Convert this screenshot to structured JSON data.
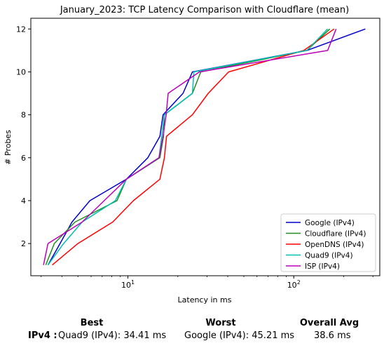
{
  "chart_data": {
    "type": "line",
    "title": "January_2023: TCP Latency Comparison with Cloudflare (mean)",
    "xlabel": "Latency in ms",
    "ylabel": "# Probes",
    "xscale": "log",
    "xlim": [
      2.6,
      330
    ],
    "ylim": [
      0.5,
      12.5
    ],
    "xticks": [
      {
        "value": 10,
        "base": "10",
        "exp": "1"
      },
      {
        "value": 100,
        "base": "10",
        "exp": "2"
      }
    ],
    "yticks": [
      2,
      4,
      6,
      8,
      10,
      12
    ],
    "grid": false,
    "legend_position": "lower-right",
    "series": [
      {
        "name": "Google (IPv4)",
        "color": "#0000cc",
        "points": [
          [
            3.3,
            1
          ],
          [
            3.9,
            2
          ],
          [
            4.6,
            3
          ],
          [
            5.9,
            4
          ],
          [
            9.8,
            5
          ],
          [
            13.2,
            6
          ],
          [
            15.6,
            7
          ],
          [
            16.3,
            8
          ],
          [
            21.5,
            9
          ],
          [
            24.5,
            10
          ],
          [
            120,
            11
          ],
          [
            270,
            12
          ]
        ]
      },
      {
        "name": "Cloudflare (IPv4)",
        "color": "#228b22",
        "points": [
          [
            3.2,
            1
          ],
          [
            3.6,
            2
          ],
          [
            4.8,
            3
          ],
          [
            8.6,
            4
          ],
          [
            9.8,
            5
          ],
          [
            15.6,
            6
          ],
          [
            16.4,
            7
          ],
          [
            16.6,
            8
          ],
          [
            24.5,
            9
          ],
          [
            27.5,
            10
          ],
          [
            120,
            11
          ],
          [
            165,
            12
          ]
        ]
      },
      {
        "name": "OpenDNS (IPv4)",
        "color": "#ff0000",
        "points": [
          [
            3.5,
            1
          ],
          [
            5.0,
            2
          ],
          [
            8.1,
            3
          ],
          [
            10.8,
            4
          ],
          [
            15.6,
            5
          ],
          [
            16.6,
            6
          ],
          [
            17.1,
            7
          ],
          [
            24.5,
            8
          ],
          [
            30.5,
            9
          ],
          [
            40.5,
            10
          ],
          [
            115,
            11
          ],
          [
            175,
            12
          ]
        ]
      },
      {
        "name": "Quad9 (IPv4)",
        "color": "#00bfb0",
        "points": [
          [
            3.3,
            1
          ],
          [
            4.1,
            2
          ],
          [
            5.3,
            3
          ],
          [
            8.4,
            4
          ],
          [
            9.8,
            5
          ],
          [
            15.4,
            6
          ],
          [
            16.0,
            7
          ],
          [
            16.6,
            8
          ],
          [
            24.5,
            9
          ],
          [
            25.0,
            10
          ],
          [
            120,
            11
          ],
          [
            160,
            12
          ]
        ]
      },
      {
        "name": "ISP (IPv4)",
        "color": "#bb00bb",
        "points": [
          [
            3.1,
            1
          ],
          [
            3.3,
            2
          ],
          [
            5.3,
            3
          ],
          [
            7.2,
            4
          ],
          [
            9.8,
            5
          ],
          [
            15.4,
            6
          ],
          [
            16.3,
            7
          ],
          [
            17.0,
            8
          ],
          [
            17.5,
            9
          ],
          [
            27.0,
            10
          ],
          [
            160,
            11
          ],
          [
            180,
            12
          ]
        ]
      }
    ]
  },
  "summary": {
    "best_header": "Best",
    "worst_header": "Worst",
    "avg_header": "Overall Avg",
    "row_label": "IPv4 :",
    "best_value": "Quad9 (IPv4): 34.41 ms",
    "worst_value": "Google (IPv4): 45.21 ms",
    "avg_value": "38.6 ms"
  }
}
